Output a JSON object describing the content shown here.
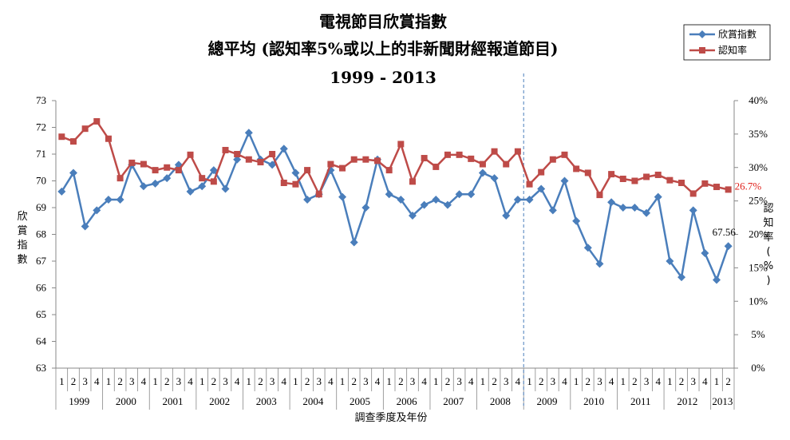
{
  "chart_data": {
    "type": "line",
    "title": "電視節目欣賞指數",
    "subtitle": "總平均 (認知率5%或以上的非新聞財經報道節目)",
    "period": "1999 - 2013",
    "xlabel": "調查季度及年份",
    "ylabel": "欣賞指數",
    "y2label": "認知率(%)",
    "ylim": [
      63,
      73
    ],
    "y_ticks": [
      "63",
      "64",
      "65",
      "66",
      "67",
      "68",
      "69",
      "70",
      "71",
      "72",
      "73"
    ],
    "y2lim": [
      0,
      40
    ],
    "y2_ticks": [
      "0%",
      "5%",
      "10%",
      "15%",
      "20%",
      "25%",
      "30%",
      "35%",
      "40%"
    ],
    "quarters": [
      "1",
      "2",
      "3",
      "4",
      "1",
      "2",
      "3",
      "4",
      "1",
      "2",
      "3",
      "4",
      "1",
      "2",
      "3",
      "4",
      "1",
      "2",
      "3",
      "4",
      "1",
      "2",
      "3",
      "4",
      "1",
      "2",
      "3",
      "4",
      "1",
      "2",
      "3",
      "4",
      "1",
      "2",
      "3",
      "4",
      "1",
      "2",
      "3",
      "4",
      "1",
      "2",
      "3",
      "4",
      "1",
      "2",
      "3",
      "4",
      "1",
      "2",
      "3",
      "4",
      "1",
      "2",
      "3",
      "4",
      "1",
      "2"
    ],
    "years": [
      {
        "label": "1999",
        "count": 4
      },
      {
        "label": "2000",
        "count": 4
      },
      {
        "label": "2001",
        "count": 4
      },
      {
        "label": "2002",
        "count": 4
      },
      {
        "label": "2003",
        "count": 4
      },
      {
        "label": "2004",
        "count": 4
      },
      {
        "label": "2005",
        "count": 4
      },
      {
        "label": "2006",
        "count": 4
      },
      {
        "label": "2007",
        "count": 4
      },
      {
        "label": "2008",
        "count": 4
      },
      {
        "label": "2009",
        "count": 4
      },
      {
        "label": "2010",
        "count": 4
      },
      {
        "label": "2011",
        "count": 4
      },
      {
        "label": "2012",
        "count": 4
      },
      {
        "label": "2013",
        "count": 2
      }
    ],
    "divider_after_index": 40,
    "series": [
      {
        "name": "欣賞指數",
        "color": "#4a7ebb",
        "marker": "diamond",
        "axis": "left",
        "values": [
          69.6,
          70.3,
          68.3,
          68.9,
          69.3,
          69.3,
          70.6,
          69.8,
          69.9,
          70.1,
          70.6,
          69.6,
          69.8,
          70.4,
          69.7,
          70.8,
          71.8,
          70.8,
          70.6,
          71.2,
          70.3,
          69.3,
          69.5,
          70.4,
          69.4,
          67.7,
          69.0,
          70.8,
          69.5,
          69.3,
          68.7,
          69.1,
          69.3,
          69.1,
          69.5,
          69.5,
          70.3,
          70.1,
          68.7,
          69.3,
          69.3,
          69.7,
          68.9,
          70.0,
          68.5,
          67.5,
          66.9,
          69.2,
          69.0,
          69.0,
          68.8,
          69.4,
          67.0,
          66.4,
          68.9,
          67.3,
          66.3,
          67.56
        ],
        "end_label": "67.56"
      },
      {
        "name": "認知率",
        "color": "#be4b48",
        "marker": "square",
        "axis": "right",
        "values": [
          34.6,
          33.9,
          35.8,
          36.9,
          34.3,
          28.4,
          30.7,
          30.5,
          29.6,
          30.0,
          29.6,
          31.9,
          28.4,
          27.9,
          32.6,
          32.0,
          31.2,
          30.8,
          32.0,
          27.7,
          27.5,
          29.6,
          26.0,
          30.5,
          29.9,
          31.2,
          31.2,
          31.0,
          29.6,
          33.5,
          27.9,
          31.4,
          30.1,
          31.9,
          31.9,
          31.3,
          30.5,
          32.4,
          30.5,
          32.4,
          27.5,
          29.3,
          31.2,
          31.9,
          29.8,
          29.2,
          25.9,
          29.0,
          28.3,
          28.0,
          28.6,
          28.9,
          28.1,
          27.7,
          26.1,
          27.6,
          27.1,
          26.7
        ],
        "end_label": "26.7%"
      }
    ],
    "legend_position": "top-right",
    "grid": false
  }
}
